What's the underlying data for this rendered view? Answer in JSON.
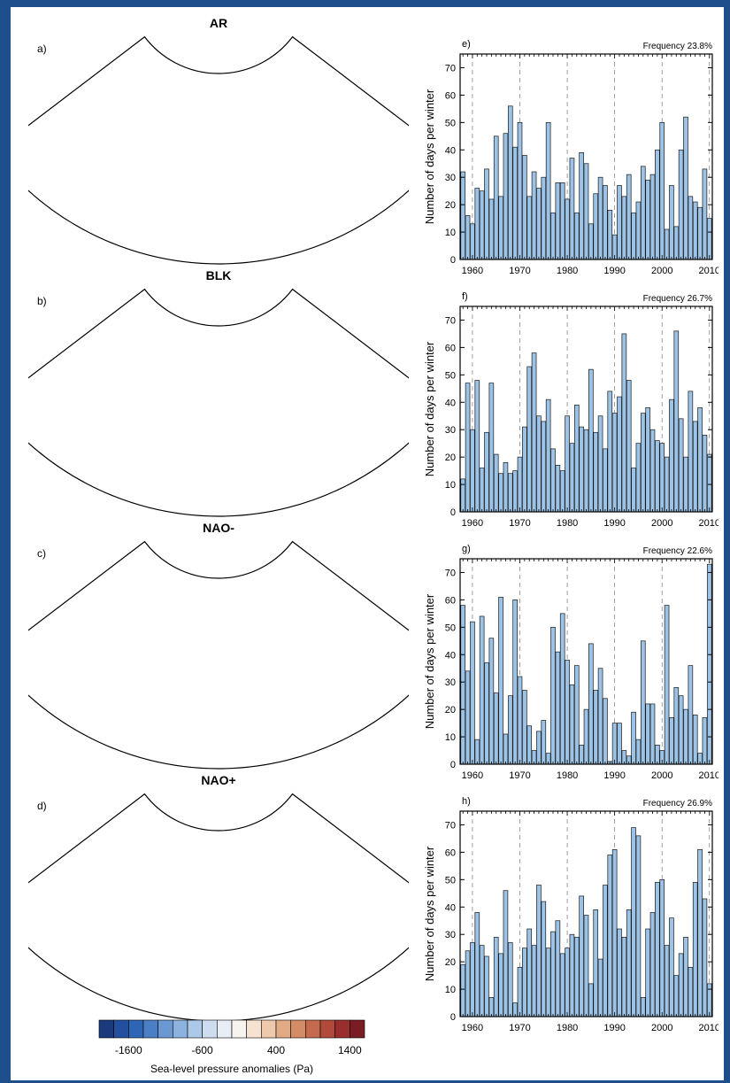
{
  "maps": [
    {
      "label": "a)",
      "title": "AR",
      "pattern": "ar"
    },
    {
      "label": "b)",
      "title": "BLK",
      "pattern": "blk"
    },
    {
      "label": "c)",
      "title": "NAO-",
      "pattern": "naom"
    },
    {
      "label": "d)",
      "title": "NAO+",
      "pattern": "naop"
    }
  ],
  "colorbar": {
    "title": "Sea-level pressure anomalies (Pa)",
    "tick_labels": [
      "-1600",
      "-600",
      "400",
      "1400"
    ],
    "colors": [
      "#1b3a7c",
      "#23509e",
      "#2f65b5",
      "#4a7fc6",
      "#6a98d2",
      "#8cb2df",
      "#adc9e8",
      "#cddcef",
      "#e7eef6",
      "#f7f3ee",
      "#f6e2d1",
      "#efc9ac",
      "#e3aa86",
      "#d48c67",
      "#c46b4f",
      "#b24a3b",
      "#9a2d2d",
      "#7a1c24"
    ]
  },
  "chart_data": [
    {
      "type": "bar",
      "label": "e)",
      "frequency_text": "Frequency 23.8%",
      "ylabel": "Number of days per winter",
      "ylim": [
        0,
        75
      ],
      "y_ticks": [
        "0",
        "10",
        "20",
        "30",
        "40",
        "50",
        "60",
        "70"
      ],
      "x_ticks": [
        "1960",
        "1970",
        "1980",
        "1990",
        "2000",
        "2010"
      ],
      "x": [
        1958,
        1959,
        1960,
        1961,
        1962,
        1963,
        1964,
        1965,
        1966,
        1967,
        1968,
        1969,
        1970,
        1971,
        1972,
        1973,
        1974,
        1975,
        1976,
        1977,
        1978,
        1979,
        1980,
        1981,
        1982,
        1983,
        1984,
        1985,
        1986,
        1987,
        1988,
        1989,
        1990,
        1991,
        1992,
        1993,
        1994,
        1995,
        1996,
        1997,
        1998,
        1999,
        2000,
        2001,
        2002,
        2003,
        2004,
        2005,
        2006,
        2007,
        2008,
        2009,
        2010
      ],
      "values": [
        32,
        16,
        13,
        26,
        25,
        33,
        22,
        45,
        23,
        46,
        56,
        41,
        50,
        38,
        23,
        32,
        26,
        30,
        50,
        17,
        28,
        28,
        22,
        37,
        17,
        39,
        35,
        13,
        24,
        30,
        27,
        18,
        9,
        27,
        23,
        31,
        17,
        21,
        34,
        29,
        31,
        40,
        50,
        11,
        27,
        12,
        40,
        52,
        23,
        21,
        19,
        33,
        15
      ]
    },
    {
      "type": "bar",
      "label": "f)",
      "frequency_text": "Frequency 26.7%",
      "ylabel": "Number of days per winter",
      "ylim": [
        0,
        75
      ],
      "y_ticks": [
        "0",
        "10",
        "20",
        "30",
        "40",
        "50",
        "60",
        "70"
      ],
      "x_ticks": [
        "1960",
        "1970",
        "1980",
        "1990",
        "2000",
        "2010"
      ],
      "x": [
        1958,
        1959,
        1960,
        1961,
        1962,
        1963,
        1964,
        1965,
        1966,
        1967,
        1968,
        1969,
        1970,
        1971,
        1972,
        1973,
        1974,
        1975,
        1976,
        1977,
        1978,
        1979,
        1980,
        1981,
        1982,
        1983,
        1984,
        1985,
        1986,
        1987,
        1988,
        1989,
        1990,
        1991,
        1992,
        1993,
        1994,
        1995,
        1996,
        1997,
        1998,
        1999,
        2000,
        2001,
        2002,
        2003,
        2004,
        2005,
        2006,
        2007,
        2008,
        2009,
        2010
      ],
      "values": [
        12,
        47,
        30,
        48,
        16,
        29,
        47,
        21,
        14,
        18,
        14,
        15,
        20,
        31,
        53,
        58,
        35,
        33,
        41,
        23,
        17,
        15,
        35,
        25,
        39,
        31,
        30,
        52,
        29,
        35,
        23,
        44,
        36,
        42,
        65,
        48,
        16,
        25,
        36,
        38,
        30,
        26,
        25,
        20,
        41,
        66,
        34,
        20,
        44,
        33,
        38,
        28,
        21
      ]
    },
    {
      "type": "bar",
      "label": "g)",
      "frequency_text": "Frequency 22.6%",
      "ylabel": "Number of days per winter",
      "ylim": [
        0,
        75
      ],
      "y_ticks": [
        "0",
        "10",
        "20",
        "30",
        "40",
        "50",
        "60",
        "70"
      ],
      "x_ticks": [
        "1960",
        "1970",
        "1980",
        "1990",
        "2000",
        "2010"
      ],
      "x": [
        1958,
        1959,
        1960,
        1961,
        1962,
        1963,
        1964,
        1965,
        1966,
        1967,
        1968,
        1969,
        1970,
        1971,
        1972,
        1973,
        1974,
        1975,
        1976,
        1977,
        1978,
        1979,
        1980,
        1981,
        1982,
        1983,
        1984,
        1985,
        1986,
        1987,
        1988,
        1989,
        1990,
        1991,
        1992,
        1993,
        1994,
        1995,
        1996,
        1997,
        1998,
        1999,
        2000,
        2001,
        2002,
        2003,
        2004,
        2005,
        2006,
        2007,
        2008,
        2009,
        2010
      ],
      "values": [
        58,
        34,
        52,
        9,
        54,
        37,
        46,
        26,
        61,
        11,
        25,
        60,
        32,
        27,
        14,
        5,
        12,
        16,
        4,
        50,
        41,
        55,
        38,
        29,
        36,
        7,
        20,
        44,
        27,
        35,
        24,
        1,
        15,
        15,
        5,
        3,
        19,
        9,
        45,
        22,
        22,
        7,
        5,
        58,
        17,
        28,
        25,
        20,
        36,
        18,
        4,
        17,
        73
      ]
    },
    {
      "type": "bar",
      "label": "h)",
      "frequency_text": "Frequency 26.9%",
      "ylabel": "Number of days per winter",
      "ylim": [
        0,
        75
      ],
      "y_ticks": [
        "0",
        "10",
        "20",
        "30",
        "40",
        "50",
        "60",
        "70"
      ],
      "x_ticks": [
        "1960",
        "1970",
        "1980",
        "1990",
        "2000",
        "2010"
      ],
      "x": [
        1958,
        1959,
        1960,
        1961,
        1962,
        1963,
        1964,
        1965,
        1966,
        1967,
        1968,
        1969,
        1970,
        1971,
        1972,
        1973,
        1974,
        1975,
        1976,
        1977,
        1978,
        1979,
        1980,
        1981,
        1982,
        1983,
        1984,
        1985,
        1986,
        1987,
        1988,
        1989,
        1990,
        1991,
        1992,
        1993,
        1994,
        1995,
        1996,
        1997,
        1998,
        1999,
        2000,
        2001,
        2002,
        2003,
        2004,
        2005,
        2006,
        2007,
        2008,
        2009,
        2010
      ],
      "values": [
        19,
        24,
        27,
        38,
        26,
        22,
        7,
        29,
        23,
        46,
        27,
        5,
        18,
        25,
        32,
        26,
        48,
        42,
        25,
        31,
        35,
        23,
        25,
        30,
        29,
        44,
        37,
        12,
        39,
        21,
        48,
        59,
        61,
        32,
        29,
        39,
        69,
        66,
        7,
        32,
        38,
        49,
        50,
        26,
        36,
        15,
        23,
        29,
        18,
        49,
        61,
        43,
        12
      ]
    }
  ]
}
